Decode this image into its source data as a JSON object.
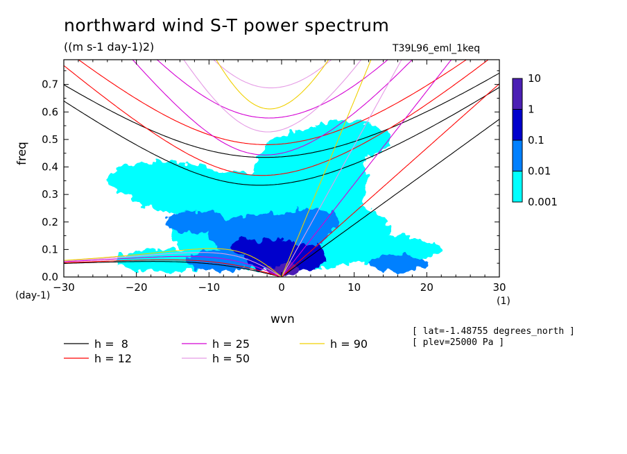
{
  "chart_data": {
    "type": "heatmap",
    "title": "northward wind S-T power spectrum",
    "units": "((m s-1 day-1)2)",
    "experiment": "T39L96_eml_1keq",
    "xlabel": "wvn",
    "ylabel": "freq",
    "x_unit": "(1)",
    "y_unit": "(day-1)",
    "xlim": [
      -30,
      30
    ],
    "ylim": [
      0,
      0.79
    ],
    "x_ticks": [
      -30,
      -20,
      -10,
      0,
      10,
      20,
      30
    ],
    "x_tick_labels": [
      "-30",
      "-20",
      "-10",
      "0",
      "10",
      "20",
      "30"
    ],
    "y_ticks": [
      0,
      0.1,
      0.2,
      0.3,
      0.4,
      0.5,
      0.6,
      0.7
    ],
    "y_tick_labels": [
      "0.0",
      "0.1",
      "0.2",
      "0.3",
      "0.4",
      "0.5",
      "0.6",
      "0.7"
    ],
    "colorbar": {
      "levels": [
        "0.001",
        "0.01",
        "0.1",
        "1",
        "10"
      ],
      "colors": [
        "#00ffff",
        "#0080ff",
        "#0000cc",
        "#4b1fb4"
      ]
    },
    "annotations": [
      "[ lat=-1.48755 degrees_north ]",
      "[ plev=25000 Pa ]"
    ],
    "dispersion_curves": [
      {
        "label": "h =  8",
        "h": 8,
        "color": "#000000"
      },
      {
        "label": "h = 12",
        "h": 12,
        "color": "#ff0000"
      },
      {
        "label": "h = 25",
        "h": 25,
        "color": "#d400d4"
      },
      {
        "label": "h = 50",
        "h": 50,
        "color": "#e59ae5"
      },
      {
        "label": "h = 90",
        "h": 90,
        "color": "#f0d000"
      }
    ],
    "spectrum_blobs": [
      {
        "x": 0,
        "y": 0.16,
        "rx": 15,
        "ry": 0.14,
        "level": 1
      },
      {
        "x": -8,
        "y": 0.3,
        "rx": 13,
        "ry": 0.08,
        "level": 1
      },
      {
        "x": 4,
        "y": 0.36,
        "rx": 8,
        "ry": 0.18,
        "level": 1
      },
      {
        "x": -16,
        "y": 0.35,
        "rx": 8,
        "ry": 0.07,
        "level": 1
      },
      {
        "x": 14,
        "y": 0.1,
        "rx": 8,
        "ry": 0.05,
        "level": 1
      },
      {
        "x": 9,
        "y": 0.5,
        "rx": 6,
        "ry": 0.07,
        "level": 1
      },
      {
        "x": -16,
        "y": 0.06,
        "rx": 7,
        "ry": 0.04,
        "level": 1
      },
      {
        "x": -2,
        "y": 0.15,
        "rx": 8,
        "ry": 0.08,
        "level": 2
      },
      {
        "x": -12,
        "y": 0.2,
        "rx": 4,
        "ry": 0.04,
        "level": 2
      },
      {
        "x": 4,
        "y": 0.2,
        "rx": 4,
        "ry": 0.05,
        "level": 2
      },
      {
        "x": -8,
        "y": 0.06,
        "rx": 5,
        "ry": 0.04,
        "level": 2
      },
      {
        "x": 16,
        "y": 0.05,
        "rx": 4,
        "ry": 0.03,
        "level": 2
      },
      {
        "x": -1,
        "y": 0.08,
        "rx": 4,
        "ry": 0.06,
        "level": 3
      },
      {
        "x": 3,
        "y": 0.07,
        "rx": 3,
        "ry": 0.05,
        "level": 3
      },
      {
        "x": -5,
        "y": 0.11,
        "rx": 2,
        "ry": 0.03,
        "level": 3
      },
      {
        "x": 0.8,
        "y": 0.03,
        "rx": 1.5,
        "ry": 0.025,
        "level": 4
      },
      {
        "x": -0.8,
        "y": 0.02,
        "rx": 1.2,
        "ry": 0.02,
        "level": 4
      }
    ]
  }
}
